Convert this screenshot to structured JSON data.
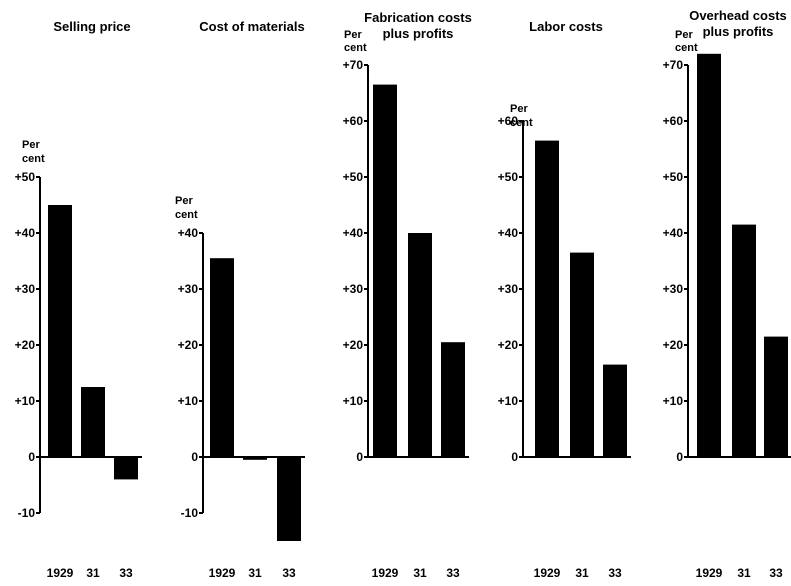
{
  "chart_data": [
    {
      "type": "bar",
      "title": [
        "Selling price"
      ],
      "unit_label": [
        "Per",
        "cent"
      ],
      "categories": [
        "1929",
        "31",
        "33"
      ],
      "values": [
        45,
        12.5,
        -4
      ],
      "ylim": [
        -10,
        50
      ],
      "yticks": [
        -10,
        0,
        10,
        20,
        30,
        40,
        50
      ],
      "ytick_labels": [
        "-10",
        "0",
        "+10",
        "+20",
        "+30",
        "+40",
        "+50"
      ]
    },
    {
      "type": "bar",
      "title": [
        "Cost of materials"
      ],
      "unit_label": [
        "Per",
        "cent"
      ],
      "categories": [
        "1929",
        "31",
        "33"
      ],
      "values": [
        35.5,
        -0.5,
        -15
      ],
      "ylim": [
        -10,
        40
      ],
      "yticks": [
        -10,
        0,
        10,
        20,
        30,
        40
      ],
      "ytick_labels": [
        "-10",
        "0",
        "+10",
        "+20",
        "+30",
        "+40"
      ]
    },
    {
      "type": "bar",
      "title": [
        "Fabrication costs",
        "plus profits"
      ],
      "unit_label": [
        "Per",
        "cent"
      ],
      "categories": [
        "1929",
        "31",
        "33"
      ],
      "values": [
        66.5,
        40,
        20.5
      ],
      "ylim": [
        0,
        70
      ],
      "yticks": [
        0,
        10,
        20,
        30,
        40,
        50,
        60,
        70
      ],
      "ytick_labels": [
        "0",
        "+10",
        "+20",
        "+30",
        "+40",
        "+50",
        "+60",
        "+70"
      ]
    },
    {
      "type": "bar",
      "title": [
        "Labor costs"
      ],
      "unit_label": [
        "Per",
        "cent"
      ],
      "categories": [
        "1929",
        "31",
        "33"
      ],
      "values": [
        56.5,
        36.5,
        16.5
      ],
      "ylim": [
        0,
        60
      ],
      "yticks": [
        0,
        10,
        20,
        30,
        40,
        50,
        60
      ],
      "ytick_labels": [
        "0",
        "+10",
        "+20",
        "+30",
        "+40",
        "+50",
        "+60"
      ]
    },
    {
      "type": "bar",
      "title": [
        "Overhead costs",
        "plus profits"
      ],
      "unit_label": [
        "Per",
        "cent"
      ],
      "categories": [
        "1929",
        "31",
        "33"
      ],
      "values": [
        72,
        41.5,
        21.5
      ],
      "ylim": [
        0,
        70
      ],
      "yticks": [
        0,
        10,
        20,
        30,
        40,
        50,
        60,
        70
      ],
      "ytick_labels": [
        "0",
        "+10",
        "+20",
        "+30",
        "+40",
        "+50",
        "+60",
        "+70"
      ]
    }
  ]
}
